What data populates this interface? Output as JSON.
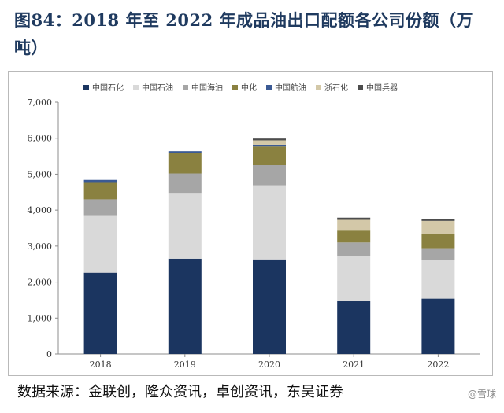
{
  "header": {
    "title": "图84：2018 年至 2022 年成品油出口配额各公司份额（万吨）"
  },
  "footer": {
    "source": "数据来源：金联创，隆众资讯，卓创资讯，东吴证券",
    "watermark": "@雪球"
  },
  "chart_data": {
    "type": "bar",
    "stacked": true,
    "categories": [
      "2018",
      "2019",
      "2020",
      "2021",
      "2022"
    ],
    "ylim": [
      0,
      7000
    ],
    "yticks": [
      "0",
      "1,000",
      "2,000",
      "3,000",
      "4,000",
      "5,000",
      "6,000",
      "7,000"
    ],
    "grid": false,
    "legend_position": "top",
    "series": [
      {
        "name": "中国石化",
        "color": "#1b3560",
        "values": [
          2260,
          2650,
          2630,
          1470,
          1540
        ]
      },
      {
        "name": "中国石油",
        "color": "#d9d9d9",
        "values": [
          1600,
          1830,
          2060,
          1260,
          1070
        ]
      },
      {
        "name": "中国海油",
        "color": "#a6a6a6",
        "values": [
          440,
          540,
          560,
          370,
          330
        ]
      },
      {
        "name": "中化",
        "color": "#8a8140",
        "values": [
          480,
          570,
          520,
          330,
          400
        ]
      },
      {
        "name": "中国航油",
        "color": "#3b5a94",
        "values": [
          60,
          50,
          50,
          0,
          0
        ]
      },
      {
        "name": "浙石化",
        "color": "#d3c8a8",
        "values": [
          0,
          0,
          120,
          300,
          360
        ]
      },
      {
        "name": "中国兵器",
        "color": "#4d4d4d",
        "values": [
          0,
          0,
          50,
          60,
          60
        ]
      }
    ]
  }
}
